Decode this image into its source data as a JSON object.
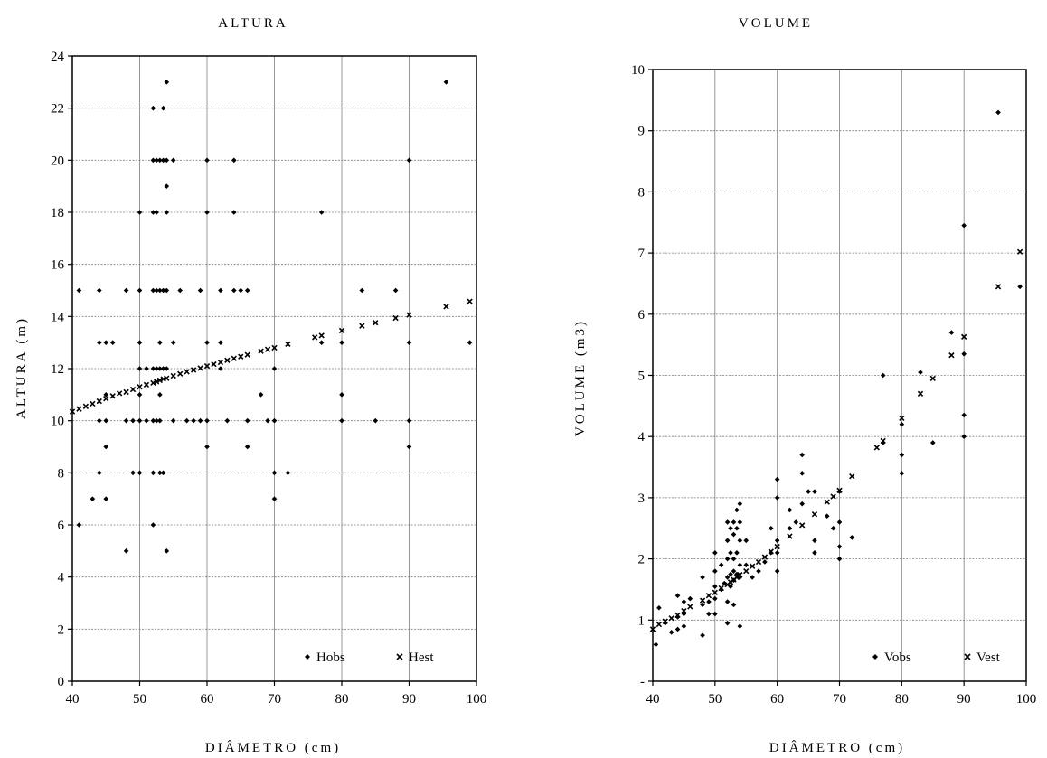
{
  "chart_data": [
    {
      "type": "scatter",
      "title": "ALTURA",
      "xlabel": "DIÂMETRO (cm)",
      "ylabel": "ALTURA (m)",
      "xlim": [
        40,
        100
      ],
      "ylim": [
        0,
        24
      ],
      "x_ticks": [
        "40",
        "50",
        "60",
        "70",
        "80",
        "90",
        "100"
      ],
      "y_ticks": [
        "0",
        "2",
        "4",
        "6",
        "8",
        "10",
        "12",
        "14",
        "16",
        "18",
        "20",
        "22",
        "24"
      ],
      "grid": true,
      "legend_position": "bottom-right",
      "series": [
        {
          "name": "Hobs",
          "marker": "diamond",
          "points": [
            [
              41,
              15
            ],
            [
              41,
              6
            ],
            [
              43,
              7
            ],
            [
              44,
              15
            ],
            [
              44,
              13
            ],
            [
              44,
              10
            ],
            [
              44,
              8
            ],
            [
              45,
              13
            ],
            [
              45,
              11
            ],
            [
              45,
              10
            ],
            [
              45,
              9
            ],
            [
              45,
              7
            ],
            [
              46,
              13
            ],
            [
              48,
              15
            ],
            [
              48,
              10
            ],
            [
              48,
              5
            ],
            [
              49,
              10
            ],
            [
              49,
              8
            ],
            [
              50,
              18
            ],
            [
              50,
              15
            ],
            [
              50,
              13
            ],
            [
              50,
              12
            ],
            [
              50,
              11
            ],
            [
              50,
              10
            ],
            [
              50,
              8
            ],
            [
              51,
              12
            ],
            [
              51,
              10
            ],
            [
              52,
              22
            ],
            [
              52,
              20
            ],
            [
              52,
              18
            ],
            [
              52,
              15
            ],
            [
              52,
              12
            ],
            [
              52,
              10
            ],
            [
              52,
              8
            ],
            [
              52,
              6
            ],
            [
              52.5,
              20
            ],
            [
              52.5,
              18
            ],
            [
              52.5,
              15
            ],
            [
              52.5,
              12
            ],
            [
              52.5,
              10
            ],
            [
              53,
              20
            ],
            [
              53,
              15
            ],
            [
              53,
              13
            ],
            [
              53,
              12
            ],
            [
              53,
              11
            ],
            [
              53,
              10
            ],
            [
              53,
              8
            ],
            [
              53.5,
              22
            ],
            [
              53.5,
              20
            ],
            [
              53.5,
              15
            ],
            [
              53.5,
              12
            ],
            [
              53.5,
              8
            ],
            [
              54,
              23
            ],
            [
              54,
              20
            ],
            [
              54,
              19
            ],
            [
              54,
              18
            ],
            [
              54,
              15
            ],
            [
              54,
              12
            ],
            [
              54,
              5
            ],
            [
              55,
              20
            ],
            [
              55,
              13
            ],
            [
              55,
              10
            ],
            [
              56,
              15
            ],
            [
              57,
              10
            ],
            [
              58,
              10
            ],
            [
              59,
              15
            ],
            [
              59,
              10
            ],
            [
              60,
              20
            ],
            [
              60,
              18
            ],
            [
              60,
              13
            ],
            [
              60,
              10
            ],
            [
              60,
              9
            ],
            [
              62,
              15
            ],
            [
              62,
              13
            ],
            [
              62,
              12
            ],
            [
              63,
              10
            ],
            [
              64,
              20
            ],
            [
              64,
              18
            ],
            [
              64,
              15
            ],
            [
              65,
              15
            ],
            [
              66,
              15
            ],
            [
              66,
              10
            ],
            [
              66,
              9
            ],
            [
              68,
              11
            ],
            [
              69,
              10
            ],
            [
              70,
              12
            ],
            [
              70,
              10
            ],
            [
              70,
              8
            ],
            [
              70,
              7
            ],
            [
              72,
              8
            ],
            [
              77,
              18
            ],
            [
              77,
              13
            ],
            [
              80,
              13
            ],
            [
              80,
              11
            ],
            [
              80,
              10
            ],
            [
              83,
              15
            ],
            [
              85,
              10
            ],
            [
              88,
              15
            ],
            [
              90,
              20
            ],
            [
              90,
              13
            ],
            [
              90,
              10
            ],
            [
              90,
              9
            ],
            [
              95.5,
              23
            ],
            [
              99,
              13
            ]
          ]
        },
        {
          "name": "Hest",
          "marker": "cross",
          "points": [
            [
              40,
              10.35
            ],
            [
              41,
              10.45
            ],
            [
              42,
              10.55
            ],
            [
              43,
              10.65
            ],
            [
              44,
              10.75
            ],
            [
              45,
              10.85
            ],
            [
              46,
              10.95
            ],
            [
              47,
              11.05
            ],
            [
              48,
              11.1
            ],
            [
              49,
              11.2
            ],
            [
              50,
              11.3
            ],
            [
              51,
              11.38
            ],
            [
              52,
              11.45
            ],
            [
              52.5,
              11.5
            ],
            [
              53,
              11.55
            ],
            [
              53.5,
              11.6
            ],
            [
              54,
              11.63
            ],
            [
              55,
              11.72
            ],
            [
              56,
              11.8
            ],
            [
              57,
              11.88
            ],
            [
              58,
              11.95
            ],
            [
              59,
              12.02
            ],
            [
              60,
              12.1
            ],
            [
              61,
              12.17
            ],
            [
              62,
              12.24
            ],
            [
              63,
              12.32
            ],
            [
              64,
              12.39
            ],
            [
              65,
              12.46
            ],
            [
              66,
              12.53
            ],
            [
              68,
              12.67
            ],
            [
              69,
              12.74
            ],
            [
              70,
              12.8
            ],
            [
              72,
              12.94
            ],
            [
              76,
              13.2
            ],
            [
              77,
              13.27
            ],
            [
              80,
              13.46
            ],
            [
              83,
              13.64
            ],
            [
              85,
              13.76
            ],
            [
              88,
              13.94
            ],
            [
              90,
              14.06
            ],
            [
              95.5,
              14.38
            ],
            [
              99,
              14.58
            ]
          ]
        }
      ]
    },
    {
      "type": "scatter",
      "title": "VOLUME",
      "xlabel": "DIÂMETRO (cm)",
      "ylabel": "VOLUME (m3)",
      "xlim": [
        40,
        100
      ],
      "ylim": [
        0,
        10
      ],
      "x_ticks": [
        "40",
        "50",
        "60",
        "70",
        "80",
        "90",
        "100"
      ],
      "y_ticks": [
        "-",
        "1",
        "2",
        "3",
        "4",
        "5",
        "6",
        "7",
        "8",
        "9",
        "10"
      ],
      "grid": true,
      "legend_position": "bottom-right",
      "series": [
        {
          "name": "Vobs",
          "marker": "diamond",
          "points": [
            [
              40.5,
              0.6
            ],
            [
              41,
              1.2
            ],
            [
              42,
              0.95
            ],
            [
              43,
              0.8
            ],
            [
              44,
              1.4
            ],
            [
              44,
              1.05
            ],
            [
              44,
              0.85
            ],
            [
              45,
              1.3
            ],
            [
              45,
              1.1
            ],
            [
              45,
              0.9
            ],
            [
              46,
              1.35
            ],
            [
              48,
              1.7
            ],
            [
              48,
              1.25
            ],
            [
              48,
              0.75
            ],
            [
              49,
              1.1
            ],
            [
              49,
              1.3
            ],
            [
              50,
              2.1
            ],
            [
              50,
              1.8
            ],
            [
              50,
              1.55
            ],
            [
              50,
              1.35
            ],
            [
              50,
              1.1
            ],
            [
              51,
              1.9
            ],
            [
              51,
              1.5
            ],
            [
              51.5,
              1.6
            ],
            [
              52,
              2.6
            ],
            [
              52,
              2.3
            ],
            [
              52,
              2.0
            ],
            [
              52,
              1.7
            ],
            [
              52,
              1.3
            ],
            [
              52,
              0.95
            ],
            [
              52.5,
              2.5
            ],
            [
              52.5,
              2.1
            ],
            [
              52.5,
              1.75
            ],
            [
              52.5,
              1.55
            ],
            [
              53,
              2.6
            ],
            [
              53,
              2.4
            ],
            [
              53,
              2.0
            ],
            [
              53,
              1.8
            ],
            [
              53,
              1.65
            ],
            [
              53,
              1.25
            ],
            [
              53.5,
              2.8
            ],
            [
              53.5,
              2.5
            ],
            [
              53.5,
              2.1
            ],
            [
              53.5,
              1.75
            ],
            [
              54,
              2.9
            ],
            [
              54,
              2.6
            ],
            [
              54,
              2.3
            ],
            [
              54,
              1.9
            ],
            [
              54,
              1.7
            ],
            [
              54,
              0.9
            ],
            [
              55,
              2.3
            ],
            [
              55,
              1.9
            ],
            [
              56,
              1.7
            ],
            [
              57,
              1.8
            ],
            [
              58,
              1.95
            ],
            [
              59,
              2.5
            ],
            [
              59,
              2.1
            ],
            [
              60,
              3.3
            ],
            [
              60,
              3.0
            ],
            [
              60,
              2.3
            ],
            [
              60,
              2.1
            ],
            [
              60,
              1.8
            ],
            [
              62,
              2.8
            ],
            [
              62,
              2.5
            ],
            [
              63,
              2.6
            ],
            [
              64,
              3.7
            ],
            [
              64,
              3.4
            ],
            [
              64,
              2.9
            ],
            [
              65,
              3.1
            ],
            [
              66,
              3.1
            ],
            [
              66,
              2.3
            ],
            [
              66,
              2.1
            ],
            [
              68,
              2.7
            ],
            [
              69,
              2.5
            ],
            [
              70,
              3.1
            ],
            [
              70,
              2.6
            ],
            [
              70,
              2.2
            ],
            [
              70,
              2.0
            ],
            [
              72,
              2.35
            ],
            [
              77,
              5.0
            ],
            [
              77,
              3.9
            ],
            [
              80,
              4.2
            ],
            [
              80,
              3.7
            ],
            [
              80,
              3.4
            ],
            [
              83,
              5.05
            ],
            [
              85,
              3.9
            ],
            [
              88,
              5.7
            ],
            [
              90,
              7.45
            ],
            [
              90,
              5.35
            ],
            [
              90,
              4.35
            ],
            [
              90,
              4.0
            ],
            [
              95.5,
              9.3
            ],
            [
              99,
              6.45
            ]
          ]
        },
        {
          "name": "Vest",
          "marker": "cross",
          "points": [
            [
              40,
              0.85
            ],
            [
              41,
              0.93
            ],
            [
              42,
              0.98
            ],
            [
              43,
              1.03
            ],
            [
              44,
              1.08
            ],
            [
              45,
              1.15
            ],
            [
              46,
              1.22
            ],
            [
              48,
              1.32
            ],
            [
              49,
              1.4
            ],
            [
              50,
              1.45
            ],
            [
              51,
              1.52
            ],
            [
              52,
              1.58
            ],
            [
              52.5,
              1.62
            ],
            [
              53,
              1.66
            ],
            [
              53.5,
              1.7
            ],
            [
              54,
              1.74
            ],
            [
              55,
              1.8
            ],
            [
              56,
              1.88
            ],
            [
              57,
              1.95
            ],
            [
              58,
              2.03
            ],
            [
              59,
              2.12
            ],
            [
              60,
              2.2
            ],
            [
              62,
              2.37
            ],
            [
              64,
              2.55
            ],
            [
              66,
              2.73
            ],
            [
              68,
              2.93
            ],
            [
              69,
              3.02
            ],
            [
              70,
              3.12
            ],
            [
              72,
              3.35
            ],
            [
              76,
              3.82
            ],
            [
              77,
              3.93
            ],
            [
              80,
              4.3
            ],
            [
              83,
              4.7
            ],
            [
              85,
              4.95
            ],
            [
              88,
              5.33
            ],
            [
              90,
              5.63
            ],
            [
              95.5,
              6.45
            ],
            [
              99,
              7.02
            ]
          ]
        }
      ]
    }
  ]
}
